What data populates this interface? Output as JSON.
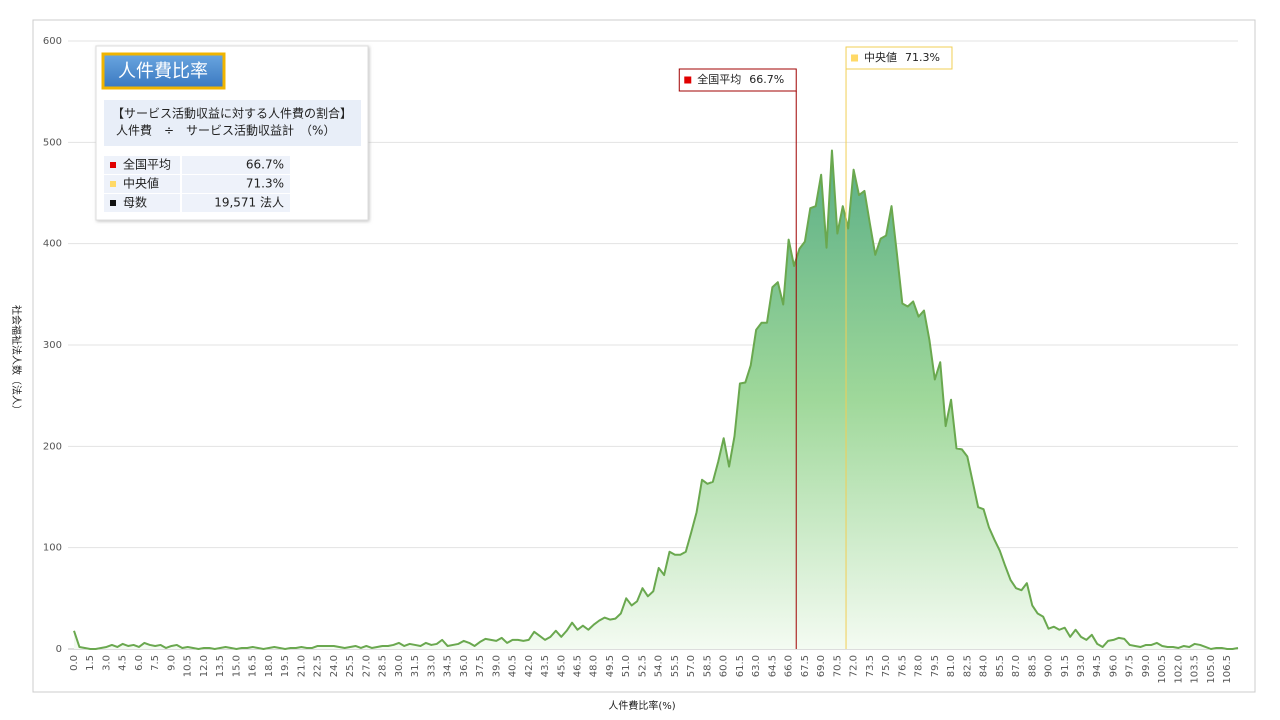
{
  "chart_data": {
    "type": "area",
    "x_label": "人件費比率(%)",
    "y_label": "社会福祉法人数（法人）",
    "color": "#6aa84f",
    "ylim": [
      0,
      600
    ],
    "yticks": [
      0,
      100,
      200,
      300,
      400,
      500,
      600
    ],
    "grid": true,
    "x_step": 0.5,
    "categories": [
      "0.0",
      null,
      null,
      "1.5",
      null,
      null,
      "3.0",
      null,
      null,
      "4.5",
      null,
      null,
      "6.0",
      null,
      null,
      "7.5",
      null,
      null,
      "9.0",
      null,
      null,
      "10.5",
      null,
      null,
      "12.0",
      null,
      null,
      "13.5",
      null,
      null,
      "15.0",
      null,
      null,
      "16.5",
      null,
      null,
      "18.0",
      null,
      null,
      "19.5",
      null,
      null,
      "21.0",
      null,
      null,
      "22.5",
      null,
      null,
      "24.0",
      null,
      null,
      "25.5",
      null,
      null,
      "27.0",
      null,
      null,
      "28.5",
      null,
      null,
      "30.0",
      null,
      null,
      "31.5",
      null,
      null,
      "33.0",
      null,
      null,
      "34.5",
      null,
      null,
      "36.0",
      null,
      null,
      "37.5",
      null,
      null,
      "39.0",
      null,
      null,
      "40.5",
      null,
      null,
      "42.0",
      null,
      null,
      "43.5",
      null,
      null,
      "45.0",
      null,
      null,
      "46.5",
      null,
      null,
      "48.0",
      null,
      null,
      "49.5",
      null,
      null,
      "51.0",
      null,
      null,
      "52.5",
      null,
      null,
      "54.0",
      null,
      null,
      "55.5",
      null,
      null,
      "57.0",
      null,
      null,
      "58.5",
      null,
      null,
      "60.0",
      null,
      null,
      "61.5",
      null,
      null,
      "63.0",
      null,
      null,
      "64.5",
      null,
      null,
      "66.0",
      null,
      null,
      "67.5",
      null,
      null,
      "69.0",
      null,
      null,
      "70.5",
      null,
      null,
      "72.0",
      null,
      null,
      "73.5",
      null,
      null,
      "75.0",
      null,
      null,
      "76.5",
      null,
      null,
      "78.0",
      null,
      null,
      "79.5",
      null,
      null,
      "81.0",
      null,
      null,
      "82.5",
      null,
      null,
      "84.0",
      null,
      null,
      "85.5",
      null,
      null,
      "87.0",
      null,
      null,
      "88.5",
      null,
      null,
      "90.0",
      null,
      null,
      "91.5",
      null,
      null,
      "93.0",
      null,
      null,
      "94.5",
      null,
      null,
      "96.0",
      null,
      null,
      "97.5",
      null,
      null,
      "99.0",
      null,
      null,
      "100.5",
      null,
      null,
      "102.0",
      null,
      null,
      "103.5",
      null,
      null,
      "105.0",
      null,
      null,
      "106.5",
      null,
      null
    ],
    "values": [
      18,
      2,
      1,
      0,
      0,
      1,
      2,
      4,
      2,
      5,
      3,
      4,
      2,
      6,
      4,
      3,
      4,
      1,
      3,
      4,
      1,
      2,
      1,
      0,
      1,
      1,
      0,
      1,
      2,
      1,
      0,
      1,
      1,
      2,
      1,
      0,
      1,
      2,
      1,
      0,
      1,
      1,
      2,
      1,
      1,
      3,
      3,
      3,
      3,
      2,
      1,
      2,
      3,
      1,
      3,
      1,
      2,
      3,
      3,
      4,
      6,
      3,
      5,
      4,
      3,
      6,
      4,
      5,
      9,
      3,
      4,
      5,
      8,
      6,
      3,
      7,
      10,
      9,
      8,
      11,
      6,
      9,
      9,
      8,
      9,
      17,
      13,
      9,
      12,
      18,
      12,
      18,
      26,
      19,
      23,
      19,
      24,
      28,
      31,
      29,
      30,
      35,
      50,
      43,
      47,
      60,
      52,
      57,
      80,
      73,
      96,
      93,
      93,
      96,
      115,
      135,
      167,
      163,
      165,
      185,
      208,
      180,
      210,
      262,
      263,
      280,
      315,
      322,
      322,
      357,
      362,
      340,
      404,
      378,
      395,
      402,
      435,
      437,
      468,
      396,
      492,
      410,
      437,
      415,
      473,
      448,
      452,
      420,
      389,
      405,
      408,
      437,
      390,
      341,
      338,
      343,
      328,
      334,
      305,
      266,
      283,
      220,
      246,
      198,
      197,
      190,
      165,
      140,
      138,
      120,
      108,
      97,
      82,
      68,
      60,
      58,
      65,
      43,
      35,
      32,
      20,
      22,
      19,
      21,
      12,
      19,
      12,
      9,
      14,
      5,
      2,
      8,
      9,
      11,
      10,
      4,
      3,
      2,
      4,
      4,
      6,
      3,
      2,
      2,
      1,
      3,
      2,
      5,
      4,
      2,
      0,
      1,
      1,
      0,
      0,
      1
    ],
    "markers": [
      {
        "name": "全国平均",
        "value": 66.7,
        "label": "66.7%",
        "color": "#e00000",
        "line_color": "#a00000"
      },
      {
        "name": "中央値",
        "value": 71.3,
        "label": "71.3%",
        "color": "#ffd966",
        "line_color": "#f2cf55"
      }
    ],
    "info": {
      "title": "人件費比率",
      "subtitle": [
        "【サービス活動収益に対する人件費の割合】",
        "人件費　÷　サービス活動収益計　（%）"
      ],
      "count": {
        "name": "母数",
        "text": "19,571 法人",
        "color": "#111111"
      }
    }
  }
}
